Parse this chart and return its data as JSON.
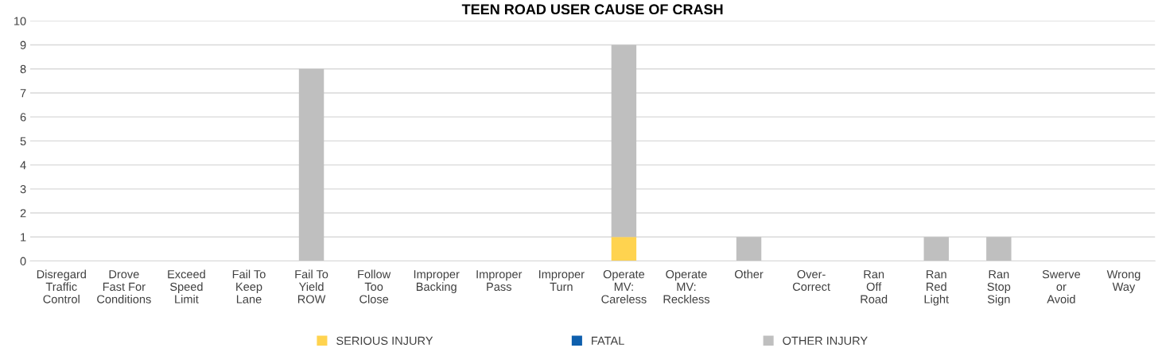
{
  "chart_data": {
    "type": "bar",
    "title": "TEEN ROAD USER CAUSE OF CRASH",
    "categories": [
      "Disregard\nTraffic\nControl",
      "Drove\nFast For\nConditions",
      "Exceed\nSpeed\nLimit",
      "Fail To\nKeep\nLane",
      "Fail To\nYield\nROW",
      "Follow\nToo\nClose",
      "Improper\nBacking",
      "Improper\nPass",
      "Improper\nTurn",
      "Operate\nMV:\nCareless",
      "Operate\nMV:\nReckless",
      "Other",
      "Over-\nCorrect",
      "Ran\nOff\nRoad",
      "Ran\nRed\nLight",
      "Ran\nStop\nSign",
      "Swerve\nor\nAvoid",
      "Wrong\nWay"
    ],
    "series": [
      {
        "name": "SERIOUS INJURY",
        "color": "#ffd34f",
        "values": [
          0,
          0,
          0,
          0,
          0,
          0,
          0,
          0,
          0,
          1,
          0,
          0,
          0,
          0,
          0,
          0,
          0,
          0
        ]
      },
      {
        "name": "FATAL",
        "color": "#0e5fad",
        "values": [
          0,
          0,
          0,
          0,
          0,
          0,
          0,
          0,
          0,
          0,
          0,
          0,
          0,
          0,
          0,
          0,
          0,
          0
        ]
      },
      {
        "name": "OTHER INJURY",
        "color": "#bfbfbf",
        "values": [
          0,
          0,
          0,
          0,
          8,
          0,
          0,
          0,
          0,
          8,
          0,
          1,
          0,
          0,
          1,
          1,
          0,
          0
        ]
      }
    ],
    "stacked": true,
    "ylim": [
      0,
      10
    ],
    "yticks": [
      0,
      1,
      2,
      3,
      4,
      5,
      6,
      7,
      8,
      9,
      10
    ],
    "grid": "y",
    "legend": "bottom"
  }
}
